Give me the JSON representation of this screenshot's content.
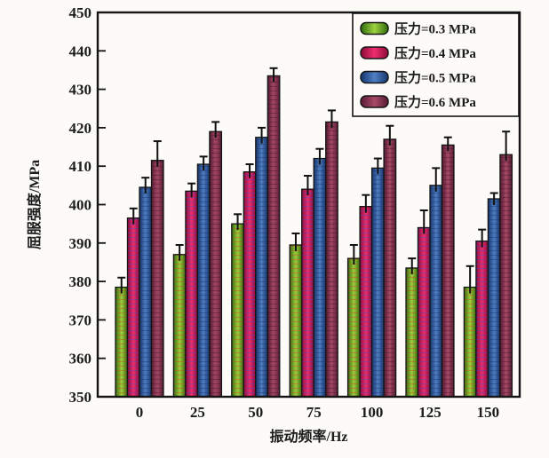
{
  "chart_data": {
    "type": "bar",
    "title": "",
    "xlabel": "振动频率/Hz",
    "ylabel": "屈服强度/MPa",
    "ylim": [
      350,
      450
    ],
    "yticks": [
      350,
      360,
      370,
      380,
      390,
      400,
      410,
      420,
      430,
      440,
      450
    ],
    "categories": [
      "0",
      "25",
      "50",
      "75",
      "100",
      "125",
      "150"
    ],
    "grid": false,
    "legend_position": "top-right",
    "error_bars": "upper",
    "background": "#fcfbf8",
    "frame_color": "#151515",
    "series": [
      {
        "name": "压力=0.3 MPa",
        "color_edge": "#2e6b0e",
        "color_mid": "#9ed23e",
        "speckle": "#d03a2a",
        "values": [
          378.5,
          387.0,
          395.0,
          389.5,
          386.0,
          383.5,
          378.5
        ],
        "errors": [
          2.5,
          2.5,
          2.5,
          3.0,
          3.5,
          2.5,
          5.5
        ]
      },
      {
        "name": "压力=0.4 MPa",
        "color_edge": "#8a0a38",
        "color_mid": "#ef2e6e",
        "speckle": "#3a50c0",
        "values": [
          396.5,
          403.5,
          408.5,
          404.0,
          399.5,
          394.0,
          390.5
        ],
        "errors": [
          2.5,
          2.0,
          2.0,
          3.5,
          3.0,
          4.5,
          3.0
        ]
      },
      {
        "name": "压力=0.5 MPa",
        "color_edge": "#16356e",
        "color_mid": "#4f7fc4",
        "speckle": "#1c2f60",
        "values": [
          404.5,
          410.5,
          417.5,
          412.0,
          409.5,
          405.0,
          401.5
        ],
        "errors": [
          2.5,
          2.0,
          2.5,
          2.5,
          2.5,
          4.5,
          1.5
        ]
      },
      {
        "name": "压力=0.6 MPa",
        "color_edge": "#571a33",
        "color_mid": "#a84a67",
        "speckle": "#40122a",
        "values": [
          411.5,
          419.0,
          433.5,
          421.5,
          417.0,
          415.5,
          413.0
        ],
        "errors": [
          5.0,
          2.5,
          2.0,
          3.0,
          3.5,
          2.0,
          6.0
        ]
      }
    ]
  }
}
